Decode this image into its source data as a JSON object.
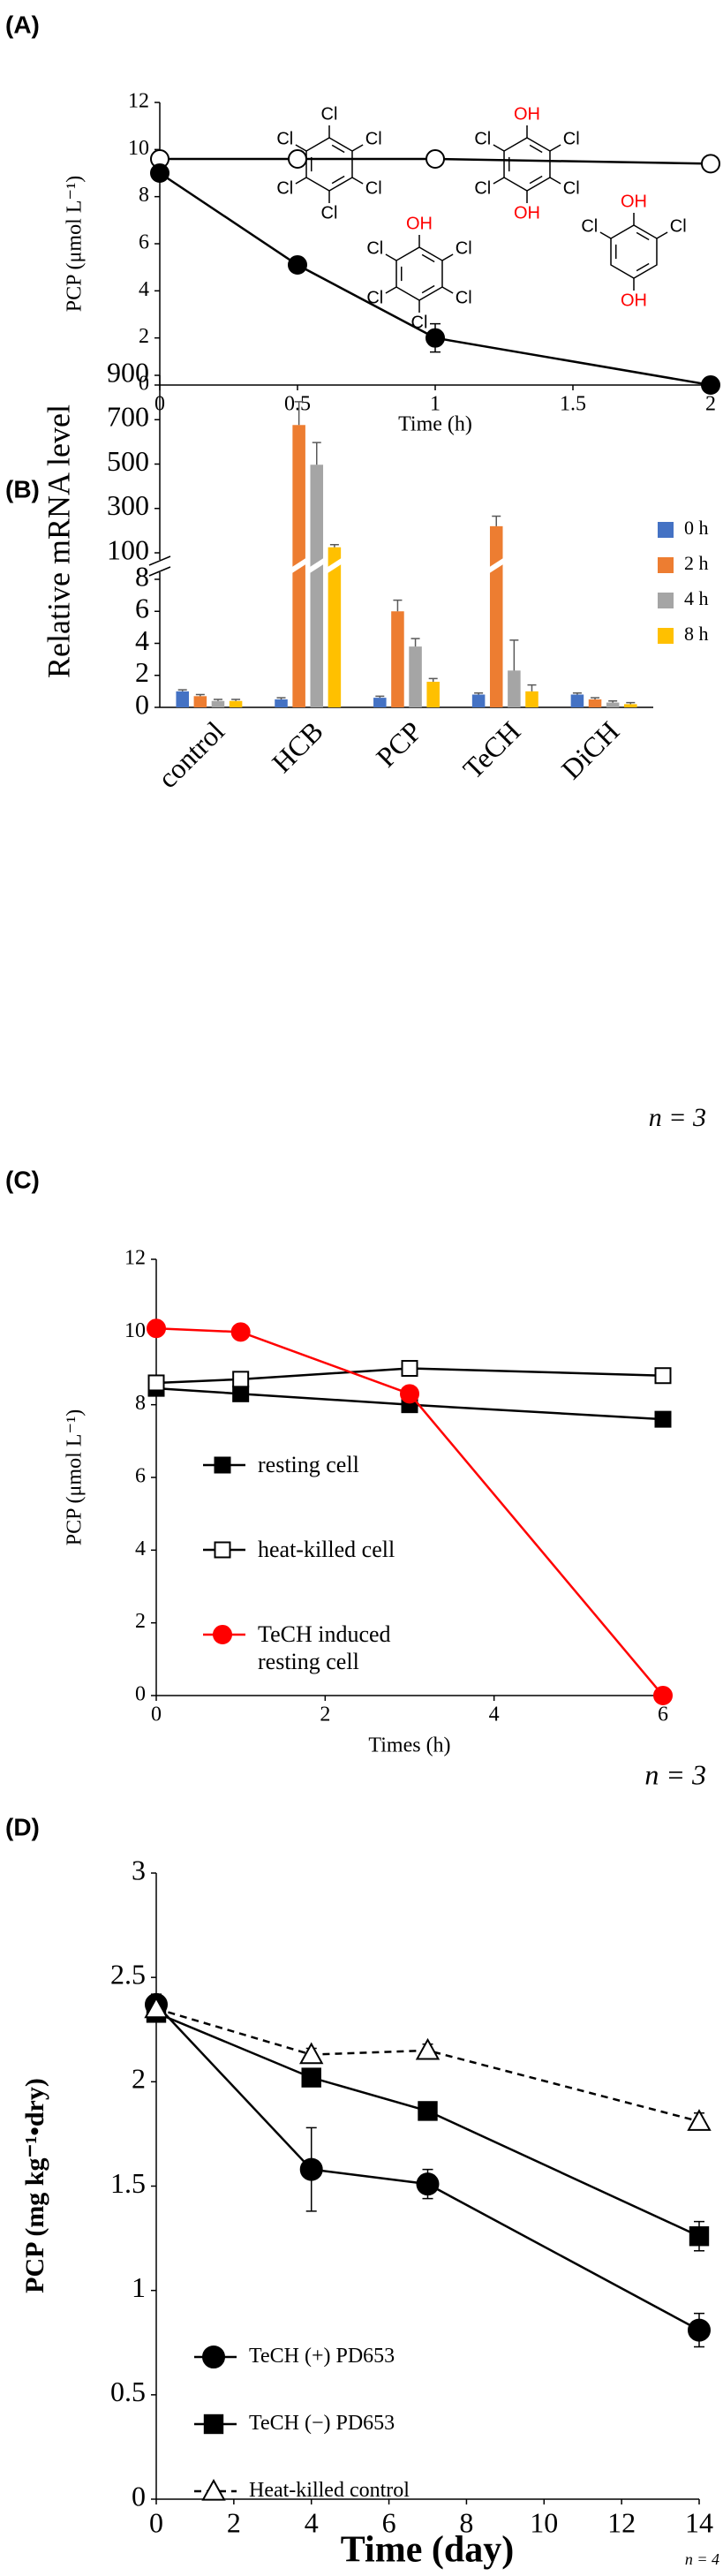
{
  "chart_data": [
    {
      "type": "line",
      "panel_label": "(A)",
      "x_label": "Time (h)",
      "y_label": "PCP (μmol L⁻¹)",
      "x": [
        0,
        0.5,
        1,
        2
      ],
      "xlim": [
        0,
        2
      ],
      "xticks": [
        0,
        0.5,
        1,
        1.5,
        2
      ],
      "ylim": [
        0,
        12
      ],
      "yticks": [
        0,
        2,
        4,
        6,
        8,
        10,
        12
      ],
      "grid": false,
      "series": [
        {
          "color": "#000000",
          "marker": "circle-open",
          "line_style": "solid",
          "values": [
            9.6,
            9.6,
            9.6,
            9.4
          ]
        },
        {
          "color": "#000000",
          "marker": "circle",
          "line_style": "solid",
          "values": [
            9.0,
            5.1,
            2.0,
            0
          ],
          "errors": [
            null,
            null,
            0.6,
            null
          ]
        }
      ]
    },
    {
      "type": "bar",
      "panel_label": "(B)",
      "y_label": "Relative mRNA level",
      "annotation": "n = 3",
      "categories": [
        "control",
        "HCB",
        "PCP",
        "TeCH",
        "DiCH"
      ],
      "ylim": [
        0,
        900
      ],
      "ybreak": [
        8,
        100
      ],
      "yticks": [
        0,
        2,
        4,
        6,
        8,
        100,
        300,
        500,
        700,
        900
      ],
      "grid": false,
      "legend": "right",
      "series": [
        {
          "name": "0 h",
          "color": "#4472c4",
          "values": [
            1.0,
            0.5,
            0.6,
            0.8,
            0.8
          ],
          "errors": [
            0.1,
            0.1,
            0.1,
            0.1,
            0.1
          ]
        },
        {
          "name": "2 h",
          "color": "#ed7d31",
          "values": [
            0.7,
            676,
            6.0,
            220,
            0.5
          ],
          "errors": [
            0.1,
            105,
            0.7,
            45,
            0.1
          ]
        },
        {
          "name": "4 h",
          "color": "#a5a5a5",
          "values": [
            0.4,
            497,
            3.8,
            2.3,
            0.3
          ],
          "errors": [
            0.1,
            100,
            0.5,
            1.9,
            0.1
          ]
        },
        {
          "name": "8 h",
          "color": "#ffc000",
          "values": [
            0.4,
            125,
            1.6,
            1.0,
            0.2
          ],
          "errors": [
            0.1,
            12,
            0.2,
            0.4,
            0.1
          ]
        }
      ],
      "substituent_colors": {
        "Cl": "#000000",
        "OH": "#ff0000"
      },
      "structures": [
        {
          "substituents": [
            "Cl",
            "Cl",
            "Cl",
            "Cl",
            "Cl",
            "Cl"
          ]
        },
        {
          "substituents": [
            "OH",
            "Cl",
            "Cl",
            "Cl",
            "Cl",
            "Cl"
          ]
        },
        {
          "substituents": [
            "OH",
            "Cl",
            "Cl",
            "OH",
            "Cl",
            "Cl"
          ]
        },
        {
          "substituents": [
            "OH",
            "Cl",
            null,
            "OH",
            null,
            "Cl"
          ]
        }
      ]
    },
    {
      "type": "line",
      "panel_label": "(C)",
      "x_label": "Times (h)",
      "y_label": "PCP (μmol L⁻¹)",
      "annotation": "n = 3",
      "x": [
        0,
        1,
        3,
        6
      ],
      "xlim": [
        0,
        6
      ],
      "xticks": [
        0,
        2,
        4,
        6
      ],
      "ylim": [
        0,
        12
      ],
      "yticks": [
        0,
        2,
        4,
        6,
        8,
        10,
        12
      ],
      "grid": false,
      "legend": "lower left",
      "series": [
        {
          "name": "resting cell",
          "color": "#000000",
          "marker": "square",
          "line_style": "solid",
          "values": [
            8.45,
            8.3,
            8.0,
            7.6
          ]
        },
        {
          "name": "heat-killed cell",
          "color": "#000000",
          "marker": "square-open",
          "line_style": "solid",
          "values": [
            8.6,
            8.7,
            9.0,
            8.8
          ]
        },
        {
          "name": "TeCH induced resting cell",
          "color": "#ff0000",
          "marker": "circle",
          "line_style": "solid",
          "values": [
            10.1,
            10.0,
            8.3,
            0
          ]
        }
      ]
    },
    {
      "type": "line",
      "panel_label": "(D)",
      "x_label": "Time (day)",
      "y_label": "PCP (mg kg⁻¹•dry)",
      "annotation": "n = 4",
      "x": [
        0,
        4,
        7,
        14
      ],
      "xlim": [
        0,
        14
      ],
      "xticks": [
        0,
        2,
        4,
        6,
        8,
        10,
        12,
        14
      ],
      "ylim": [
        0,
        3
      ],
      "yticks": [
        0,
        0.5,
        1,
        1.5,
        2,
        2.5,
        3
      ],
      "grid": false,
      "legend": "lower left",
      "series": [
        {
          "name": "TeCH (+) PD653",
          "color": "#000000",
          "marker": "circle",
          "line_style": "solid",
          "values": [
            2.37,
            1.58,
            1.51,
            0.81
          ],
          "errors": [
            0.05,
            0.2,
            0.07,
            0.08
          ]
        },
        {
          "name": "TeCH (−) PD653",
          "color": "#000000",
          "marker": "square",
          "line_style": "solid",
          "values": [
            2.33,
            2.02,
            1.86,
            1.26
          ],
          "errors": [
            0.03,
            0.03,
            0.03,
            0.07
          ]
        },
        {
          "name": "Heat-killed control",
          "color": "#000000",
          "marker": "triangle-open",
          "line_style": "dashed",
          "values": [
            2.35,
            2.13,
            2.15,
            1.81
          ],
          "errors": [
            0.03,
            0.03,
            0.03,
            0.04
          ]
        }
      ]
    }
  ]
}
